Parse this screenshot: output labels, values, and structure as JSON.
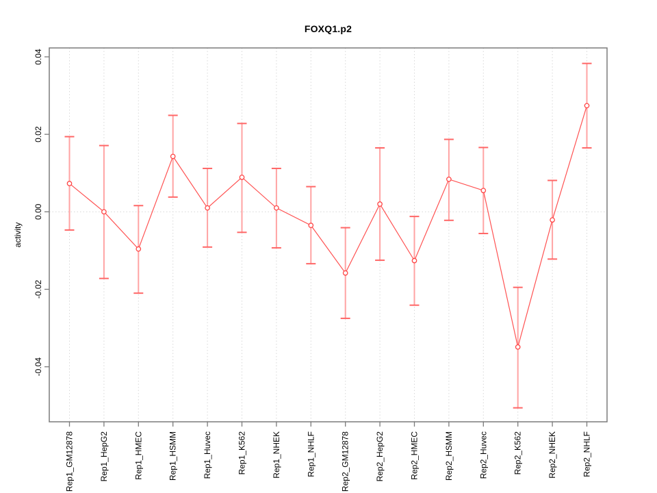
{
  "window": {
    "background": "#ffffff"
  },
  "chart_data": {
    "type": "line",
    "title": "FOXQ1.p2",
    "ylabel": "activity",
    "xlabel": "",
    "categories": [
      "Rep1_GM12878",
      "Rep1_HepG2",
      "Rep1_HMEC",
      "Rep1_HSMM",
      "Rep1_Huvec",
      "Rep1_K562",
      "Rep1_NHEK",
      "Rep1_NHLF",
      "Rep2_GM12878",
      "Rep2_HepG2",
      "Rep2_HMEC",
      "Rep2_HSMM",
      "Rep2_Huvec",
      "Rep2_K562",
      "Rep2_NHEK",
      "Rep2_NHLF"
    ],
    "series": [
      {
        "name": "activity",
        "values": [
          0.0073,
          0.0,
          -0.0096,
          0.0143,
          0.001,
          0.0089,
          0.001,
          -0.0035,
          -0.0158,
          0.002,
          -0.0126,
          0.0084,
          0.0055,
          -0.0349,
          -0.0021,
          0.0274
        ],
        "error_low": [
          -0.0047,
          -0.0172,
          -0.021,
          0.0038,
          -0.0091,
          -0.0053,
          -0.0093,
          -0.0134,
          -0.0275,
          -0.0125,
          -0.0241,
          -0.0022,
          -0.0056,
          -0.0506,
          -0.0122,
          0.0165
        ],
        "error_high": [
          0.0194,
          0.0171,
          0.0016,
          0.0249,
          0.0112,
          0.0228,
          0.0112,
          0.0065,
          -0.0041,
          0.0165,
          -0.0012,
          0.0187,
          0.0166,
          -0.0195,
          0.0081,
          0.0383
        ]
      }
    ],
    "yticks": [
      -0.04,
      -0.02,
      0,
      0.02,
      0.04
    ],
    "ytick_labels": [
      "-0.04",
      "-0.02",
      "0.00",
      "0.02",
      "0.04"
    ],
    "ylim": [
      -0.0542,
      0.0423
    ],
    "grid": {
      "vertical_per_category": true,
      "zero_line_dotted": true
    },
    "legend": "none",
    "colors": {
      "line": "#ff5252",
      "point_stroke": "#ff4444",
      "point_fill": "#ffffff",
      "error_stem": "#ffa3a3",
      "error_cap": "#ff6666",
      "grid": "#d8d8d8",
      "axis": "#7a7a7a",
      "text": "#000000"
    }
  }
}
